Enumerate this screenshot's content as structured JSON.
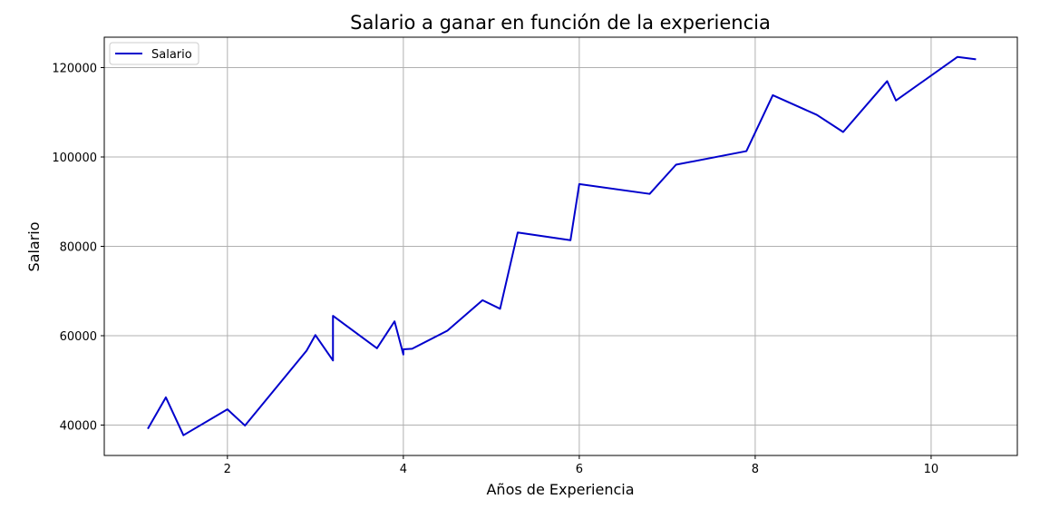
{
  "chart_data": {
    "type": "line",
    "title": "Salario a ganar en función de la experiencia",
    "xlabel": "Años de Experiencia",
    "ylabel": "Salario",
    "xlim": [
      0.6,
      10.98
    ],
    "ylim": [
      33200,
      126800
    ],
    "xticks": [
      2,
      4,
      6,
      8,
      10
    ],
    "yticks": [
      40000,
      60000,
      80000,
      100000,
      120000
    ],
    "grid": true,
    "legend_position": "top-left",
    "series": [
      {
        "name": "Salario",
        "color": "#0000cc",
        "x": [
          1.1,
          1.3,
          1.5,
          2.0,
          2.2,
          2.9,
          3.0,
          3.2,
          3.2,
          3.7,
          3.9,
          4.0,
          4.0,
          4.1,
          4.5,
          4.9,
          5.1,
          5.3,
          5.9,
          6.0,
          6.8,
          7.1,
          7.9,
          8.2,
          8.7,
          9.0,
          9.5,
          9.6,
          10.3,
          10.5
        ],
        "y": [
          39343,
          46205,
          37731,
          43525,
          39891,
          56642,
          60150,
          54445,
          64445,
          57189,
          63218,
          55794,
          56957,
          57081,
          61111,
          67938,
          66029,
          83088,
          81363,
          93940,
          91738,
          98273,
          101302,
          113812,
          109431,
          105582,
          116969,
          112635,
          122391,
          121872
        ]
      }
    ]
  }
}
